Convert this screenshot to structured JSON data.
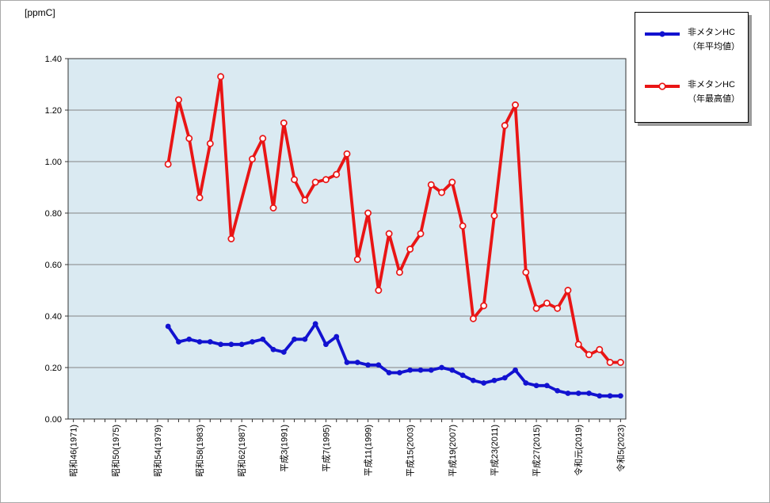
{
  "unit_label": "[ppmC]",
  "legend": {
    "items": [
      {
        "id": "average",
        "line1": "非メタンHC",
        "line2": "（年平均値）",
        "color": "#1212d0",
        "marker": "filled-circle"
      },
      {
        "id": "maximum",
        "line1": "非メタンHC",
        "line2": "（年最高値）",
        "color": "#e91515",
        "marker": "open-circle"
      }
    ]
  },
  "chart_data": {
    "type": "line",
    "title": "",
    "ylabel": "[ppmC]",
    "ylim": [
      0.0,
      1.4
    ],
    "ytick_step": 0.2,
    "ytick_labels": [
      "0.00",
      "0.20",
      "0.40",
      "0.60",
      "0.80",
      "1.00",
      "1.20",
      "1.40"
    ],
    "grid": true,
    "plot_bg": "#daeaf2",
    "gridline_color": "#848484",
    "axis_border_color": "#333333",
    "years": {
      "first": 1971,
      "last": 2023
    },
    "xtick_minor_every_year": true,
    "xtick_labels": [
      {
        "year": 1971,
        "label": "昭和46(1971)"
      },
      {
        "year": 1975,
        "label": "昭和50(1975)"
      },
      {
        "year": 1979,
        "label": "昭和54(1979)"
      },
      {
        "year": 1983,
        "label": "昭和58(1983)"
      },
      {
        "year": 1987,
        "label": "昭和62(1987)"
      },
      {
        "year": 1991,
        "label": "平成3(1991)"
      },
      {
        "year": 1995,
        "label": "平成7(1995)"
      },
      {
        "year": 1999,
        "label": "平成11(1999)"
      },
      {
        "year": 2003,
        "label": "平成15(2003)"
      },
      {
        "year": 2007,
        "label": "平成19(2007)"
      },
      {
        "year": 2011,
        "label": "平成23(2011)"
      },
      {
        "year": 2015,
        "label": "平成27(2015)"
      },
      {
        "year": 2019,
        "label": "令和元(2019)"
      },
      {
        "year": 2023,
        "label": "令和5(2023)"
      }
    ],
    "series": [
      {
        "id": "average",
        "name": "非メタンHC（年平均値）",
        "color": "#1212d0",
        "marker": "filled-circle",
        "start_year": 1980,
        "values": [
          0.36,
          0.3,
          0.31,
          0.3,
          0.3,
          0.29,
          0.29,
          0.29,
          0.3,
          0.31,
          0.27,
          0.26,
          0.31,
          0.31,
          0.37,
          0.29,
          0.32,
          0.22,
          0.22,
          0.21,
          0.21,
          0.18,
          0.18,
          0.19,
          0.19,
          0.19,
          0.2,
          0.19,
          0.17,
          0.15,
          0.14,
          0.15,
          0.16,
          0.19,
          0.14,
          0.13,
          0.13,
          0.11,
          0.1,
          0.1,
          0.1,
          0.09,
          0.09,
          0.09
        ]
      },
      {
        "id": "maximum",
        "name": "非メタンHC（年最高値）",
        "color": "#e91515",
        "marker": "open-circle",
        "start_year": 1980,
        "values": [
          0.99,
          1.24,
          1.09,
          0.86,
          1.07,
          1.33,
          0.7,
          null,
          1.01,
          1.09,
          0.82,
          1.15,
          0.93,
          0.85,
          0.92,
          0.93,
          0.95,
          1.03,
          0.62,
          0.8,
          0.5,
          0.72,
          0.57,
          0.66,
          0.72,
          0.91,
          0.88,
          0.92,
          0.75,
          0.39,
          0.44,
          0.79,
          1.14,
          1.22,
          0.57,
          0.43,
          0.45,
          0.43,
          0.5,
          0.29,
          0.25,
          0.27,
          0.22,
          0.22
        ]
      }
    ]
  }
}
